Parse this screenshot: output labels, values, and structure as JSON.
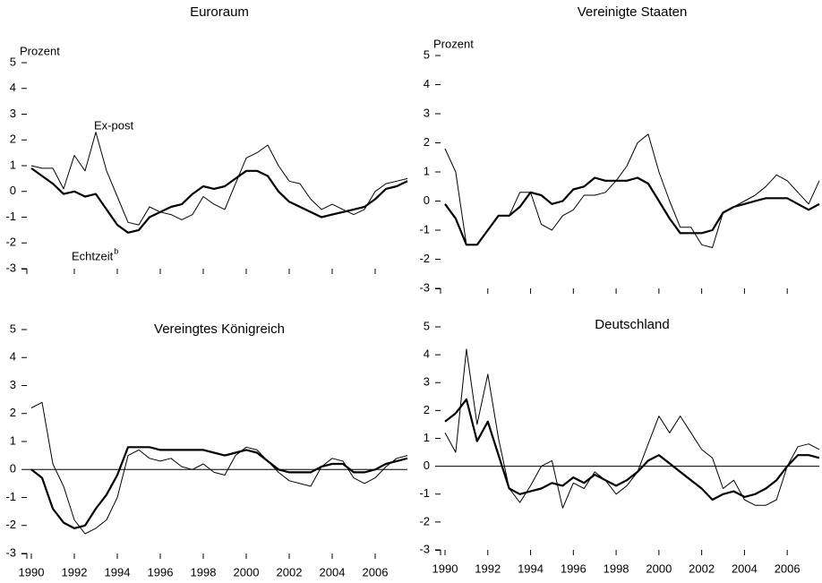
{
  "chart_data": [
    {
      "type": "line",
      "title": "Euroraum",
      "y_label": "Prozent",
      "series_labels": true,
      "xtick_labels": false,
      "zero_line": false,
      "x": [
        1990,
        1990.5,
        1991,
        1991.5,
        1992,
        1992.5,
        1993,
        1993.5,
        1994,
        1994.5,
        1995,
        1995.5,
        1996,
        1996.5,
        1997,
        1997.5,
        1998,
        1998.5,
        1999,
        1999.5,
        2000,
        2000.5,
        2001,
        2001.5,
        2002,
        2002.5,
        2003,
        2003.5,
        2004,
        2004.5,
        2005,
        2005.5,
        2006,
        2006.5,
        2007,
        2007.5
      ],
      "xlim": [
        1990,
        2007.5
      ],
      "xticks": [
        1992,
        1994,
        1996,
        1998,
        2000,
        2002,
        2004,
        2006
      ],
      "ylim": [
        -3,
        5
      ],
      "yticks": [
        -3,
        -2,
        -1,
        0,
        1,
        2,
        3,
        4,
        5
      ],
      "series": [
        {
          "name": "Echtzeit",
          "name_note": "b",
          "color": "#000000",
          "values": [
            0.9,
            0.6,
            0.3,
            -0.1,
            0.0,
            -0.2,
            -0.1,
            -0.7,
            -1.3,
            -1.6,
            -1.5,
            -1.0,
            -0.8,
            -0.6,
            -0.5,
            -0.1,
            0.2,
            0.1,
            0.2,
            0.5,
            0.8,
            0.8,
            0.6,
            0.0,
            -0.4,
            -0.6,
            -0.8,
            -1.0,
            -0.9,
            -0.8,
            -0.7,
            -0.6,
            -0.3,
            0.1,
            0.2,
            0.4
          ]
        },
        {
          "name": "Ex-post",
          "color": "#000000",
          "values": [
            1.0,
            0.9,
            0.9,
            0.1,
            1.4,
            0.8,
            2.3,
            0.8,
            -0.2,
            -1.2,
            -1.3,
            -0.6,
            -0.8,
            -0.9,
            -1.1,
            -0.9,
            -0.2,
            -0.5,
            -0.7,
            0.3,
            1.3,
            1.5,
            1.8,
            1.0,
            0.4,
            0.3,
            -0.3,
            -0.7,
            -0.5,
            -0.7,
            -0.9,
            -0.7,
            0.0,
            0.3,
            0.4,
            0.5
          ]
        }
      ]
    },
    {
      "type": "line",
      "title": "Vereinigte Staaten",
      "y_label": "Prozent",
      "xtick_labels": false,
      "zero_line": false,
      "x": [
        1990,
        1990.5,
        1991,
        1991.5,
        1992,
        1992.5,
        1993,
        1993.5,
        1994,
        1994.5,
        1995,
        1995.5,
        1996,
        1996.5,
        1997,
        1997.5,
        1998,
        1998.5,
        1999,
        1999.5,
        2000,
        2000.5,
        2001,
        2001.5,
        2002,
        2002.5,
        2003,
        2003.5,
        2004,
        2004.5,
        2005,
        2005.5,
        2006,
        2006.5,
        2007,
        2007.5
      ],
      "xlim": [
        1990,
        2007.5
      ],
      "xticks": [
        1992,
        1994,
        1996,
        1998,
        2000,
        2002,
        2004,
        2006
      ],
      "ylim": [
        -3,
        5
      ],
      "yticks": [
        -3,
        -2,
        -1,
        0,
        1,
        2,
        3,
        4,
        5
      ],
      "series": [
        {
          "color": "#000000",
          "values": [
            -0.1,
            -0.6,
            -1.5,
            -1.5,
            -1.0,
            -0.5,
            -0.5,
            -0.2,
            0.3,
            0.2,
            -0.1,
            0.0,
            0.4,
            0.5,
            0.8,
            0.7,
            0.7,
            0.7,
            0.8,
            0.6,
            0.0,
            -0.6,
            -1.1,
            -1.1,
            -1.1,
            -1.0,
            -0.4,
            -0.2,
            -0.1,
            0.0,
            0.1,
            0.1,
            0.1,
            -0.1,
            -0.3,
            -0.1
          ]
        },
        {
          "color": "#000000",
          "values": [
            1.8,
            1.0,
            -1.5,
            -1.5,
            -1.0,
            -0.5,
            -0.5,
            0.3,
            0.3,
            -0.8,
            -1.0,
            -0.5,
            -0.3,
            0.2,
            0.2,
            0.3,
            0.7,
            1.2,
            2.0,
            2.3,
            1.0,
            0.0,
            -0.9,
            -0.9,
            -1.5,
            -1.6,
            -0.4,
            -0.2,
            0.0,
            0.2,
            0.5,
            0.9,
            0.7,
            0.3,
            -0.1,
            0.7
          ]
        }
      ]
    },
    {
      "type": "line",
      "title": "Vereingtes Königreich",
      "xtick_labels": true,
      "zero_line": true,
      "x": [
        1990,
        1990.5,
        1991,
        1991.5,
        1992,
        1992.5,
        1993,
        1993.5,
        1994,
        1994.5,
        1995,
        1995.5,
        1996,
        1996.5,
        1997,
        1997.5,
        1998,
        1998.5,
        1999,
        1999.5,
        2000,
        2000.5,
        2001,
        2001.5,
        2002,
        2002.5,
        2003,
        2003.5,
        2004,
        2004.5,
        2005,
        2005.5,
        2006,
        2006.5,
        2007,
        2007.5
      ],
      "xlim": [
        1990,
        2007.5
      ],
      "xticks": [
        1990,
        1992,
        1994,
        1996,
        1998,
        2000,
        2002,
        2004,
        2006
      ],
      "ylim": [
        -3,
        5
      ],
      "yticks": [
        -3,
        -2,
        -1,
        0,
        1,
        2,
        3,
        4,
        5
      ],
      "series": [
        {
          "color": "#000000",
          "values": [
            0.0,
            -0.3,
            -1.4,
            -1.9,
            -2.1,
            -2.0,
            -1.4,
            -0.9,
            -0.2,
            0.8,
            0.8,
            0.8,
            0.7,
            0.7,
            0.7,
            0.7,
            0.7,
            0.6,
            0.5,
            0.6,
            0.7,
            0.6,
            0.3,
            0.0,
            -0.1,
            -0.1,
            -0.1,
            0.1,
            0.2,
            0.2,
            -0.1,
            -0.1,
            0.0,
            0.2,
            0.3,
            0.4
          ]
        },
        {
          "color": "#000000",
          "values": [
            2.2,
            2.4,
            0.2,
            -0.6,
            -1.8,
            -2.3,
            -2.1,
            -1.8,
            -1.0,
            0.5,
            0.7,
            0.4,
            0.3,
            0.4,
            0.1,
            0.0,
            0.2,
            -0.1,
            -0.2,
            0.5,
            0.8,
            0.7,
            0.3,
            -0.1,
            -0.4,
            -0.5,
            -0.6,
            0.1,
            0.4,
            0.3,
            -0.3,
            -0.5,
            -0.3,
            0.1,
            0.4,
            0.5
          ]
        }
      ]
    },
    {
      "type": "line",
      "title": "Deutschland",
      "xtick_labels": true,
      "zero_line": true,
      "x": [
        1990,
        1990.5,
        1991,
        1991.5,
        1992,
        1992.5,
        1993,
        1993.5,
        1994,
        1994.5,
        1995,
        1995.5,
        1996,
        1996.5,
        1997,
        1997.5,
        1998,
        1998.5,
        1999,
        1999.5,
        2000,
        2000.5,
        2001,
        2001.5,
        2002,
        2002.5,
        2003,
        2003.5,
        2004,
        2004.5,
        2005,
        2005.5,
        2006,
        2006.5,
        2007,
        2007.5
      ],
      "xlim": [
        1990,
        2007.5
      ],
      "xticks": [
        1990,
        1992,
        1994,
        1996,
        1998,
        2000,
        2002,
        2004,
        2006
      ],
      "ylim": [
        -3,
        5
      ],
      "yticks": [
        -3,
        -2,
        -1,
        0,
        1,
        2,
        3,
        4,
        5
      ],
      "series": [
        {
          "color": "#000000",
          "values": [
            1.6,
            1.9,
            2.4,
            0.9,
            1.6,
            0.4,
            -0.8,
            -1.0,
            -0.9,
            -0.8,
            -0.6,
            -0.7,
            -0.4,
            -0.6,
            -0.3,
            -0.5,
            -0.7,
            -0.5,
            -0.2,
            0.2,
            0.4,
            0.1,
            -0.2,
            -0.5,
            -0.8,
            -1.2,
            -1.0,
            -0.9,
            -1.1,
            -1.0,
            -0.8,
            -0.5,
            0.0,
            0.4,
            0.4,
            0.3
          ]
        },
        {
          "color": "#000000",
          "values": [
            1.2,
            0.5,
            4.2,
            1.5,
            3.3,
            1.0,
            -0.8,
            -1.3,
            -0.7,
            0.0,
            0.2,
            -1.5,
            -0.6,
            -0.8,
            -0.2,
            -0.5,
            -1.0,
            -0.7,
            -0.2,
            0.8,
            1.8,
            1.2,
            1.8,
            1.2,
            0.6,
            0.3,
            -0.8,
            -0.5,
            -1.2,
            -1.4,
            -1.4,
            -1.2,
            0.0,
            0.7,
            0.8,
            0.6
          ]
        }
      ]
    }
  ]
}
